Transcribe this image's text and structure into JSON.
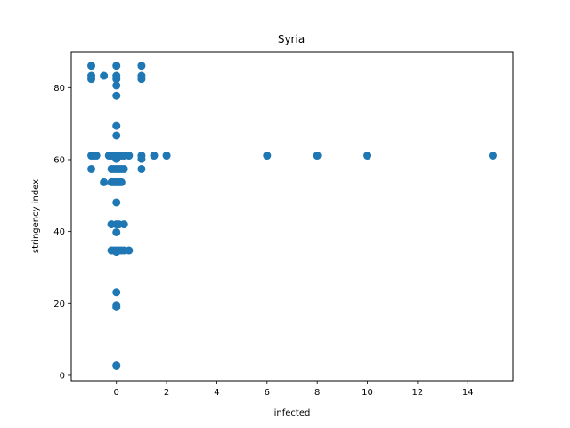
{
  "chart_data": {
    "type": "scatter",
    "title": "Syria",
    "xlabel": "infected",
    "ylabel": "stringency index",
    "xlim": [
      -1.8,
      15.8
    ],
    "ylim": [
      -1.5,
      90
    ],
    "xticks": [
      0,
      2,
      4,
      6,
      8,
      10,
      12,
      14
    ],
    "yticks": [
      0,
      20,
      40,
      60,
      80
    ],
    "grid": false,
    "marker_color": "#1f77b4",
    "series": [
      {
        "points": [
          [
            -1,
            86.1
          ],
          [
            -1,
            83.3
          ],
          [
            -1,
            82.4
          ],
          [
            -0.5,
            83.3
          ],
          [
            0,
            86.1
          ],
          [
            0,
            83.3
          ],
          [
            0,
            82.4
          ],
          [
            0,
            80.6
          ],
          [
            0,
            77.8
          ],
          [
            1,
            86.1
          ],
          [
            1,
            83.3
          ],
          [
            1,
            82.4
          ],
          [
            0,
            69.4
          ],
          [
            0,
            66.7
          ],
          [
            -1,
            61.1
          ],
          [
            -0.9,
            61.1
          ],
          [
            -0.8,
            61.1
          ],
          [
            -0.3,
            61.1
          ],
          [
            -0.2,
            61.1
          ],
          [
            -0.1,
            61.1
          ],
          [
            0,
            61.1
          ],
          [
            0.1,
            61.1
          ],
          [
            0.2,
            61.1
          ],
          [
            0.3,
            61.1
          ],
          [
            0.5,
            61.1
          ],
          [
            1,
            61.1
          ],
          [
            1.5,
            61.1
          ],
          [
            2,
            61.1
          ],
          [
            6,
            61.1
          ],
          [
            8,
            61.1
          ],
          [
            10,
            61.1
          ],
          [
            15,
            61.1
          ],
          [
            0,
            60.2
          ],
          [
            1,
            60.2
          ],
          [
            -1,
            57.4
          ],
          [
            -0.2,
            57.4
          ],
          [
            -0.1,
            57.4
          ],
          [
            0,
            57.4
          ],
          [
            0.1,
            57.4
          ],
          [
            0.2,
            57.4
          ],
          [
            0.3,
            57.4
          ],
          [
            1,
            57.4
          ],
          [
            -0.5,
            53.7
          ],
          [
            -0.2,
            53.7
          ],
          [
            -0.1,
            53.7
          ],
          [
            0,
            53.7
          ],
          [
            0.1,
            53.7
          ],
          [
            0.2,
            53.7
          ],
          [
            0,
            48.1
          ],
          [
            -0.2,
            42.0
          ],
          [
            0,
            42.0
          ],
          [
            0.1,
            42.0
          ],
          [
            0.3,
            42.0
          ],
          [
            0,
            39.8
          ],
          [
            -0.2,
            34.7
          ],
          [
            -0.1,
            34.7
          ],
          [
            0,
            34.7
          ],
          [
            0.1,
            34.7
          ],
          [
            0.2,
            34.7
          ],
          [
            0.3,
            34.7
          ],
          [
            0.5,
            34.7
          ],
          [
            0,
            34.3
          ],
          [
            0,
            23.1
          ],
          [
            0,
            19.4
          ],
          [
            0,
            19.0
          ],
          [
            0,
            2.8
          ],
          [
            0,
            2.6
          ]
        ]
      }
    ]
  }
}
